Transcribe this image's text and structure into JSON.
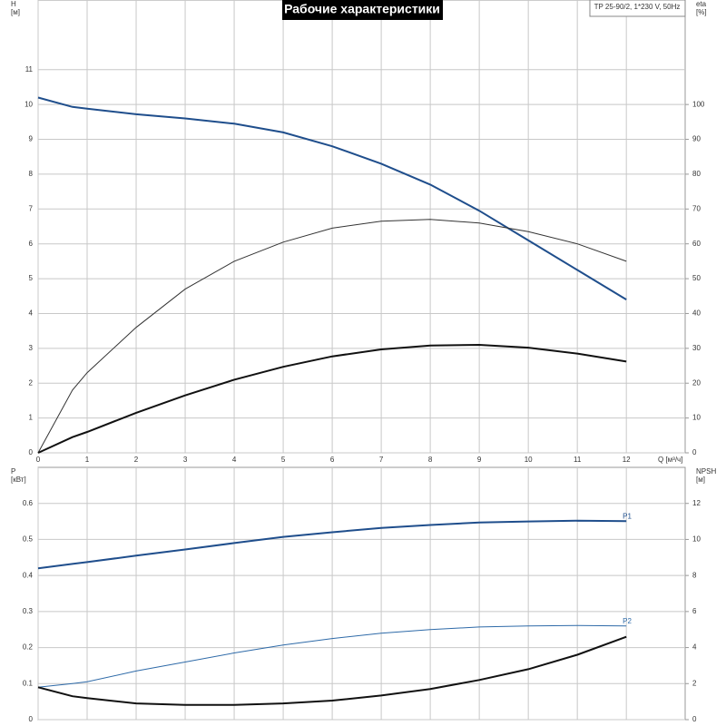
{
  "chart_data": [
    {
      "type": "line",
      "title": "Рабочие характеристики",
      "subtitle": "TP 25-90/2, 1*230 V, 50Hz",
      "ylabel": [
        "H",
        "[м]"
      ],
      "y2label": [
        "eta",
        "[%]"
      ],
      "xlabel": "Q [м³/ч]",
      "x": [
        0,
        0.7,
        1,
        2,
        3,
        4,
        5,
        6,
        7,
        8,
        9,
        10,
        11,
        12
      ],
      "xlim": [
        0,
        13.2
      ],
      "xticks": [
        0,
        1,
        2,
        3,
        4,
        5,
        6,
        7,
        8,
        9,
        10,
        11,
        12
      ],
      "xtick_labels": true,
      "ylim": [
        0,
        13
      ],
      "yticks": [
        0,
        1,
        2,
        3,
        4,
        5,
        6,
        7,
        8,
        9,
        10,
        11
      ],
      "y2lim": [
        0,
        130
      ],
      "y2ticks": [
        0,
        10,
        20,
        30,
        40,
        50,
        60,
        70,
        80,
        90,
        100
      ],
      "grid": true,
      "series": [
        {
          "color": "#1f4e8c",
          "width": 2,
          "values": [
            10.2,
            9.93,
            9.88,
            9.72,
            9.6,
            9.45,
            9.2,
            8.8,
            8.3,
            7.7,
            6.95,
            6.1,
            5.25,
            4.4
          ]
        },
        {
          "color": "#333333",
          "width": 1,
          "axis": "y2",
          "values": [
            0,
            18,
            23,
            36,
            47,
            55,
            60.5,
            64.5,
            66.5,
            67,
            66,
            63.5,
            60,
            55
          ]
        },
        {
          "color": "#111111",
          "width": 2,
          "axis": "y2",
          "values": [
            0,
            4.5,
            6,
            11.5,
            16.5,
            21,
            24.7,
            27.7,
            29.7,
            30.8,
            31,
            30.2,
            28.5,
            26.2
          ]
        }
      ]
    },
    {
      "type": "line",
      "ylabel": [
        "P",
        "[кВт]"
      ],
      "y2label": [
        "NPSH",
        "[м]"
      ],
      "x": [
        0,
        0.7,
        1,
        2,
        3,
        4,
        5,
        6,
        7,
        8,
        9,
        10,
        11,
        12
      ],
      "xlim": [
        0,
        13.2
      ],
      "xticks": [
        0,
        1,
        2,
        3,
        4,
        5,
        6,
        7,
        8,
        9,
        10,
        11,
        12
      ],
      "xtick_labels": false,
      "ylim": [
        0,
        0.7
      ],
      "yticks": [
        0,
        0.1,
        0.2,
        0.3,
        0.4,
        0.5,
        0.6
      ],
      "y2lim": [
        0,
        14
      ],
      "y2ticks": [
        0,
        2,
        4,
        6,
        8,
        10,
        12
      ],
      "grid": true,
      "series": [
        {
          "name": "P1",
          "color": "#1f4e8c",
          "width": 2,
          "values": [
            0.42,
            0.432,
            0.437,
            0.455,
            0.472,
            0.49,
            0.507,
            0.52,
            0.532,
            0.54,
            0.547,
            0.55,
            0.552,
            0.551
          ]
        },
        {
          "name": "P2",
          "color": "#2e6aa8",
          "width": 1,
          "values": [
            0.09,
            0.1,
            0.105,
            0.135,
            0.16,
            0.185,
            0.207,
            0.225,
            0.24,
            0.25,
            0.257,
            0.26,
            0.261,
            0.26
          ]
        },
        {
          "color": "#111111",
          "width": 2,
          "axis": "y2",
          "values": [
            1.8,
            1.3,
            1.2,
            0.9,
            0.82,
            0.82,
            0.9,
            1.06,
            1.34,
            1.7,
            2.2,
            2.8,
            3.6,
            4.6
          ]
        }
      ]
    }
  ]
}
